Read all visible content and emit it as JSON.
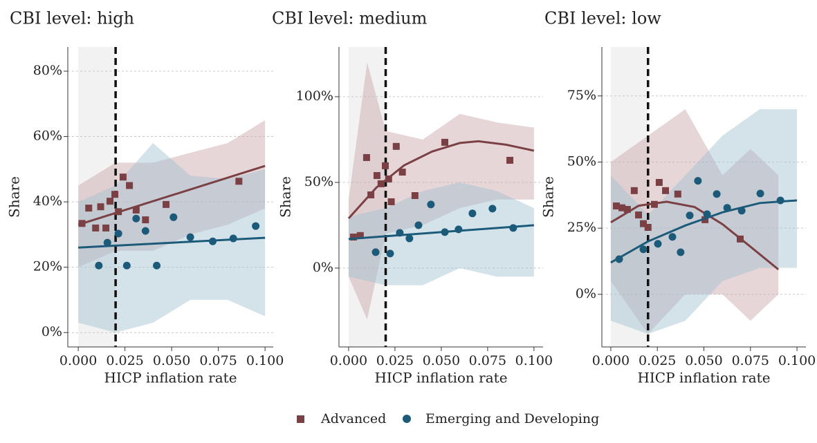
{
  "chart_data": [
    {
      "type": "scatter",
      "title": "CBI level: high",
      "xlabel": "HICP inflation rate",
      "ylabel": "Share",
      "xlim": [
        -0.0056,
        0.1044
      ],
      "ylim": [
        -4.4,
        87.4
      ],
      "xticks": [
        {
          "value": 0,
          "label": "0.000"
        },
        {
          "value": 0.025,
          "label": "0.025"
        },
        {
          "value": 0.05,
          "label": "0.050"
        },
        {
          "value": 0.075,
          "label": "0.075"
        },
        {
          "value": 0.1,
          "label": "0.100"
        }
      ],
      "yticks": [
        {
          "value": 0,
          "label": "0%"
        },
        {
          "value": 20,
          "label": "20%"
        },
        {
          "value": 40,
          "label": "40%"
        },
        {
          "value": 60,
          "label": "60%"
        },
        {
          "value": 80,
          "label": "80%"
        }
      ],
      "grid": true,
      "shade_x": [
        0,
        0.02
      ],
      "vline": 0.02,
      "series": [
        {
          "name": "Advanced",
          "color": "#7b4044",
          "band_color": "#c9a5a8",
          "marker": "square",
          "x": [
            0.002,
            0.0056,
            0.0093,
            0.012,
            0.0148,
            0.017,
            0.0196,
            0.0215,
            0.024,
            0.0274,
            0.031,
            0.036,
            0.047,
            0.086
          ],
          "values": [
            33.4,
            38.1,
            32,
            38.5,
            32,
            40.2,
            42.3,
            37,
            47.6,
            45,
            37.5,
            34.5,
            39.2,
            46.3
          ],
          "fit_x": [
            0,
            0.1
          ],
          "fit_values": [
            33,
            51
          ],
          "band_x": [
            0,
            0.02,
            0.04,
            0.06,
            0.08,
            0.1
          ],
          "band_lower": [
            20,
            25,
            25,
            30,
            33,
            38
          ],
          "band_upper": [
            45,
            52,
            52,
            55,
            58,
            65
          ]
        },
        {
          "name": "Emerging and Developing",
          "color": "#1c5a7a",
          "band_color": "#9fc2d1",
          "marker": "circle",
          "x": [
            0.011,
            0.0156,
            0.0215,
            0.026,
            0.031,
            0.036,
            0.042,
            0.051,
            0.06,
            0.072,
            0.083,
            0.095
          ],
          "values": [
            20.5,
            27.5,
            30.3,
            20.5,
            34.9,
            31.1,
            20.5,
            35.3,
            29.2,
            27.9,
            28.8,
            32.6
          ],
          "fit_x": [
            0,
            0.1
          ],
          "fit_values": [
            26,
            29
          ],
          "band_x": [
            0,
            0.02,
            0.04,
            0.06,
            0.08,
            0.1
          ],
          "band_lower": [
            3,
            0,
            3,
            10,
            10,
            5
          ],
          "band_upper": [
            40,
            45,
            58,
            48,
            47,
            50
          ]
        }
      ]
    },
    {
      "type": "scatter",
      "title": "CBI level: medium",
      "xlabel": "HICP inflation rate",
      "ylabel": "Share",
      "xlim": [
        -0.0052,
        0.1049
      ],
      "ylim": [
        -46,
        129
      ],
      "xticks": [
        {
          "value": 0,
          "label": "0.000"
        },
        {
          "value": 0.025,
          "label": "0.025"
        },
        {
          "value": 0.05,
          "label": "0.050"
        },
        {
          "value": 0.075,
          "label": "0.075"
        },
        {
          "value": 0.1,
          "label": "0.100"
        }
      ],
      "yticks": [
        {
          "value": 0,
          "label": "0%"
        },
        {
          "value": 50,
          "label": "50%"
        },
        {
          "value": 100,
          "label": "100%"
        }
      ],
      "grid": true,
      "shade_x": [
        0,
        0.02
      ],
      "vline": 0.02,
      "series": [
        {
          "name": "Advanced",
          "color": "#7b4044",
          "band_color": "#c9a5a8",
          "marker": "square",
          "x": [
            0.0026,
            0.0063,
            0.0097,
            0.012,
            0.0153,
            0.0175,
            0.0198,
            0.0216,
            0.023,
            0.0257,
            0.029,
            0.0358,
            0.0519,
            0.087
          ],
          "values": [
            18.1,
            19,
            64.5,
            42.7,
            54,
            49.2,
            59.7,
            52,
            38.7,
            71,
            56,
            42.3,
            73.4,
            62.9
          ],
          "fit_x": [
            0,
            0.015,
            0.03,
            0.045,
            0.06,
            0.07,
            0.085,
            0.1
          ],
          "fit_values": [
            29,
            47,
            60,
            68,
            73,
            74,
            72,
            68.5
          ],
          "band_x": [
            0,
            0.01,
            0.02,
            0.04,
            0.06,
            0.08,
            0.1
          ],
          "band_lower": [
            -5,
            -30,
            20,
            25,
            35,
            40,
            40
          ],
          "band_upper": [
            40,
            120,
            80,
            75,
            90,
            85,
            82
          ]
        },
        {
          "name": "Emerging and Developing",
          "color": "#1c5a7a",
          "band_color": "#9fc2d1",
          "marker": "circle",
          "x": [
            0.0146,
            0.0224,
            0.0276,
            0.0328,
            0.0377,
            0.0444,
            0.0519,
            0.0593,
            0.0668,
            0.0776,
            0.0888
          ],
          "values": [
            9.3,
            8.5,
            20.6,
            17.3,
            25,
            37.1,
            21,
            22.6,
            31.9,
            34.7,
            23.4
          ],
          "fit_x": [
            0,
            0.1
          ],
          "fit_values": [
            17,
            25
          ],
          "band_x": [
            0,
            0.02,
            0.04,
            0.06,
            0.08,
            0.1
          ],
          "band_lower": [
            -5,
            -10,
            -10,
            0,
            -5,
            -5
          ],
          "band_upper": [
            30,
            35,
            45,
            50,
            45,
            35
          ]
        }
      ]
    },
    {
      "type": "scatter",
      "title": "CBI level: low",
      "xlabel": "HICP inflation rate",
      "ylabel": "Share",
      "xlim": [
        -0.0048,
        0.1048
      ],
      "ylim": [
        -19.9,
        93.5
      ],
      "xticks": [
        {
          "value": 0,
          "label": "0.000"
        },
        {
          "value": 0.025,
          "label": "0.025"
        },
        {
          "value": 0.05,
          "label": "0.050"
        },
        {
          "value": 0.075,
          "label": "0.075"
        },
        {
          "value": 0.1,
          "label": "0.100"
        }
      ],
      "yticks": [
        {
          "value": 0,
          "label": "0%"
        },
        {
          "value": 25,
          "label": "25%"
        },
        {
          "value": 50,
          "label": "50%"
        },
        {
          "value": 75,
          "label": "75%"
        }
      ],
      "grid": true,
      "shade_x": [
        0,
        0.02
      ],
      "vline": 0.02,
      "series": [
        {
          "name": "Advanced",
          "color": "#7b4044",
          "band_color": "#c9a5a8",
          "marker": "square",
          "x": [
            0.003,
            0.006,
            0.0089,
            0.0126,
            0.0149,
            0.0175,
            0.02,
            0.0234,
            0.026,
            0.0294,
            0.036,
            0.0506,
            0.0695
          ],
          "values": [
            33.4,
            32.7,
            32.1,
            39.2,
            30,
            26.7,
            25.3,
            34,
            42.3,
            39.2,
            37.9,
            28.2,
            20.9
          ],
          "fit_x": [
            0,
            0.015,
            0.03,
            0.045,
            0.06,
            0.075,
            0.09
          ],
          "fit_values": [
            27.2,
            33.5,
            35,
            33,
            26.5,
            18,
            9.4
          ],
          "band_x": [
            0,
            0.02,
            0.04,
            0.06,
            0.075,
            0.09
          ],
          "band_lower": [
            5,
            -15,
            0,
            0,
            -10,
            0
          ],
          "band_upper": [
            50,
            60,
            70,
            45,
            55,
            45
          ]
        },
        {
          "name": "Emerging and Developing",
          "color": "#1c5a7a",
          "band_color": "#9fc2d1",
          "marker": "circle",
          "x": [
            0.0045,
            0.0175,
            0.0253,
            0.0331,
            0.0375,
            0.0424,
            0.0468,
            0.0517,
            0.0569,
            0.0625,
            0.0703,
            0.0803,
            0.0911
          ],
          "values": [
            13.3,
            17,
            19.1,
            21.7,
            15.9,
            29.8,
            42.9,
            30.3,
            37.9,
            32.7,
            31.6,
            38.1,
            35.5
          ],
          "fit_x": [
            0,
            0.02,
            0.04,
            0.06,
            0.08,
            0.1
          ],
          "fit_values": [
            12,
            20,
            26,
            31,
            34.5,
            35.5
          ],
          "band_x": [
            0,
            0.02,
            0.04,
            0.06,
            0.08,
            0.1
          ],
          "band_lower": [
            -10,
            -15,
            -10,
            5,
            10,
            10
          ],
          "band_upper": [
            45,
            30,
            45,
            60,
            70,
            70
          ]
        }
      ]
    }
  ]
}
